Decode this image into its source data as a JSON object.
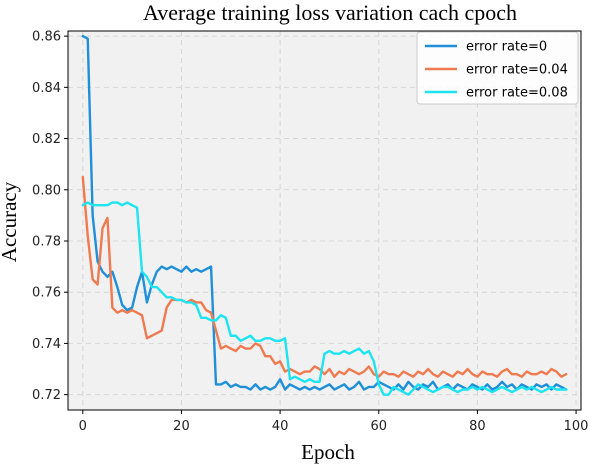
{
  "chart_data": {
    "type": "line",
    "title": "Average training loss variation cach cpoch",
    "xlabel": "Epoch",
    "ylabel": "Accuracy",
    "xlim": [
      -3,
      101
    ],
    "ylim": [
      0.714,
      0.862
    ],
    "x_ticks": [
      0,
      20,
      40,
      60,
      80,
      100
    ],
    "y_ticks": [
      0.72,
      0.74,
      0.76,
      0.78,
      0.8,
      0.82,
      0.84,
      0.86
    ],
    "grid": true,
    "legend_position": "top-right",
    "series": [
      {
        "name": "error rate=0",
        "color": "#1f8fd8",
        "x": [
          0,
          1,
          2,
          3,
          4,
          5,
          6,
          7,
          8,
          9,
          10,
          11,
          12,
          13,
          14,
          15,
          16,
          17,
          18,
          19,
          20,
          21,
          22,
          23,
          24,
          25,
          26,
          27,
          28,
          29,
          30,
          31,
          32,
          33,
          34,
          35,
          36,
          37,
          38,
          39,
          40,
          41,
          42,
          43,
          44,
          45,
          46,
          47,
          48,
          49,
          50,
          51,
          52,
          53,
          54,
          55,
          56,
          57,
          58,
          59,
          60,
          61,
          62,
          63,
          64,
          65,
          66,
          67,
          68,
          69,
          70,
          71,
          72,
          73,
          74,
          75,
          76,
          77,
          78,
          79,
          80,
          81,
          82,
          83,
          84,
          85,
          86,
          87,
          88,
          89,
          90,
          91,
          92,
          93,
          94,
          95,
          96,
          97,
          98
        ],
        "values": [
          0.86,
          0.859,
          0.79,
          0.772,
          0.768,
          0.766,
          0.768,
          0.762,
          0.755,
          0.753,
          0.754,
          0.762,
          0.768,
          0.756,
          0.763,
          0.768,
          0.77,
          0.769,
          0.77,
          0.769,
          0.768,
          0.77,
          0.768,
          0.769,
          0.768,
          0.769,
          0.77,
          0.724,
          0.724,
          0.725,
          0.723,
          0.724,
          0.723,
          0.723,
          0.722,
          0.724,
          0.722,
          0.723,
          0.722,
          0.723,
          0.726,
          0.722,
          0.724,
          0.723,
          0.722,
          0.723,
          0.722,
          0.723,
          0.722,
          0.723,
          0.724,
          0.722,
          0.723,
          0.724,
          0.722,
          0.723,
          0.725,
          0.722,
          0.723,
          0.723,
          0.725,
          0.724,
          0.723,
          0.722,
          0.724,
          0.722,
          0.725,
          0.723,
          0.722,
          0.724,
          0.723,
          0.725,
          0.722,
          0.723,
          0.724,
          0.722,
          0.724,
          0.723,
          0.722,
          0.724,
          0.723,
          0.722,
          0.724,
          0.722,
          0.723,
          0.725,
          0.723,
          0.724,
          0.722,
          0.724,
          0.723,
          0.722,
          0.724,
          0.723,
          0.724,
          0.722,
          0.724,
          0.723,
          0.722
        ]
      },
      {
        "name": "error rate=0.04",
        "color": "#f07a4f",
        "x": [
          0,
          1,
          2,
          3,
          4,
          5,
          6,
          7,
          8,
          9,
          10,
          11,
          12,
          13,
          14,
          15,
          16,
          17,
          18,
          19,
          20,
          21,
          22,
          23,
          24,
          25,
          26,
          27,
          28,
          29,
          30,
          31,
          32,
          33,
          34,
          35,
          36,
          37,
          38,
          39,
          40,
          41,
          42,
          43,
          44,
          45,
          46,
          47,
          48,
          49,
          50,
          51,
          52,
          53,
          54,
          55,
          56,
          57,
          58,
          59,
          60,
          61,
          62,
          63,
          64,
          65,
          66,
          67,
          68,
          69,
          70,
          71,
          72,
          73,
          74,
          75,
          76,
          77,
          78,
          79,
          80,
          81,
          82,
          83,
          84,
          85,
          86,
          87,
          88,
          89,
          90,
          91,
          92,
          93,
          94,
          95,
          96,
          97,
          98
        ],
        "values": [
          0.805,
          0.782,
          0.765,
          0.763,
          0.785,
          0.789,
          0.754,
          0.752,
          0.753,
          0.752,
          0.753,
          0.752,
          0.751,
          0.742,
          0.743,
          0.744,
          0.745,
          0.754,
          0.757,
          0.757,
          0.757,
          0.756,
          0.757,
          0.756,
          0.756,
          0.753,
          0.752,
          0.745,
          0.738,
          0.739,
          0.738,
          0.737,
          0.739,
          0.738,
          0.738,
          0.74,
          0.739,
          0.735,
          0.735,
          0.732,
          0.733,
          0.729,
          0.73,
          0.729,
          0.728,
          0.729,
          0.729,
          0.731,
          0.73,
          0.728,
          0.73,
          0.727,
          0.729,
          0.728,
          0.73,
          0.729,
          0.728,
          0.729,
          0.731,
          0.728,
          0.727,
          0.729,
          0.728,
          0.728,
          0.727,
          0.729,
          0.728,
          0.727,
          0.729,
          0.728,
          0.73,
          0.728,
          0.727,
          0.729,
          0.728,
          0.727,
          0.729,
          0.728,
          0.73,
          0.728,
          0.727,
          0.729,
          0.728,
          0.728,
          0.727,
          0.729,
          0.73,
          0.728,
          0.728,
          0.727,
          0.729,
          0.728,
          0.728,
          0.729,
          0.728,
          0.73,
          0.729,
          0.727,
          0.728
        ]
      },
      {
        "name": "error rate=0.08",
        "color": "#1ee3f0",
        "x": [
          0,
          1,
          2,
          3,
          4,
          5,
          6,
          7,
          8,
          9,
          10,
          11,
          12,
          13,
          14,
          15,
          16,
          17,
          18,
          19,
          20,
          21,
          22,
          23,
          24,
          25,
          26,
          27,
          28,
          29,
          30,
          31,
          32,
          33,
          34,
          35,
          36,
          37,
          38,
          39,
          40,
          41,
          42,
          43,
          44,
          45,
          46,
          47,
          48,
          49,
          50,
          51,
          52,
          53,
          54,
          55,
          56,
          57,
          58,
          59,
          60,
          61,
          62,
          63,
          64,
          65,
          66,
          67,
          68,
          69,
          70,
          71,
          72,
          73,
          74,
          75,
          76,
          77,
          78,
          79,
          80,
          81,
          82,
          83,
          84,
          85,
          86,
          87,
          88,
          89,
          90,
          91,
          92,
          93,
          94,
          95,
          96,
          97,
          98
        ],
        "values": [
          0.794,
          0.795,
          0.794,
          0.794,
          0.794,
          0.794,
          0.795,
          0.795,
          0.794,
          0.795,
          0.794,
          0.793,
          0.768,
          0.766,
          0.762,
          0.762,
          0.76,
          0.758,
          0.758,
          0.757,
          0.757,
          0.756,
          0.756,
          0.755,
          0.75,
          0.75,
          0.749,
          0.749,
          0.751,
          0.75,
          0.743,
          0.743,
          0.741,
          0.742,
          0.743,
          0.741,
          0.741,
          0.742,
          0.742,
          0.741,
          0.741,
          0.742,
          0.726,
          0.727,
          0.726,
          0.725,
          0.726,
          0.725,
          0.725,
          0.736,
          0.737,
          0.736,
          0.736,
          0.737,
          0.736,
          0.737,
          0.738,
          0.736,
          0.737,
          0.733,
          0.724,
          0.72,
          0.72,
          0.723,
          0.722,
          0.721,
          0.72,
          0.722,
          0.724,
          0.723,
          0.722,
          0.721,
          0.722,
          0.723,
          0.723,
          0.722,
          0.721,
          0.722,
          0.722,
          0.723,
          0.722,
          0.723,
          0.722,
          0.721,
          0.722,
          0.723,
          0.722,
          0.721,
          0.722,
          0.723,
          0.722,
          0.723,
          0.722,
          0.721,
          0.722,
          0.723,
          0.722,
          0.722,
          0.722
        ]
      }
    ]
  }
}
